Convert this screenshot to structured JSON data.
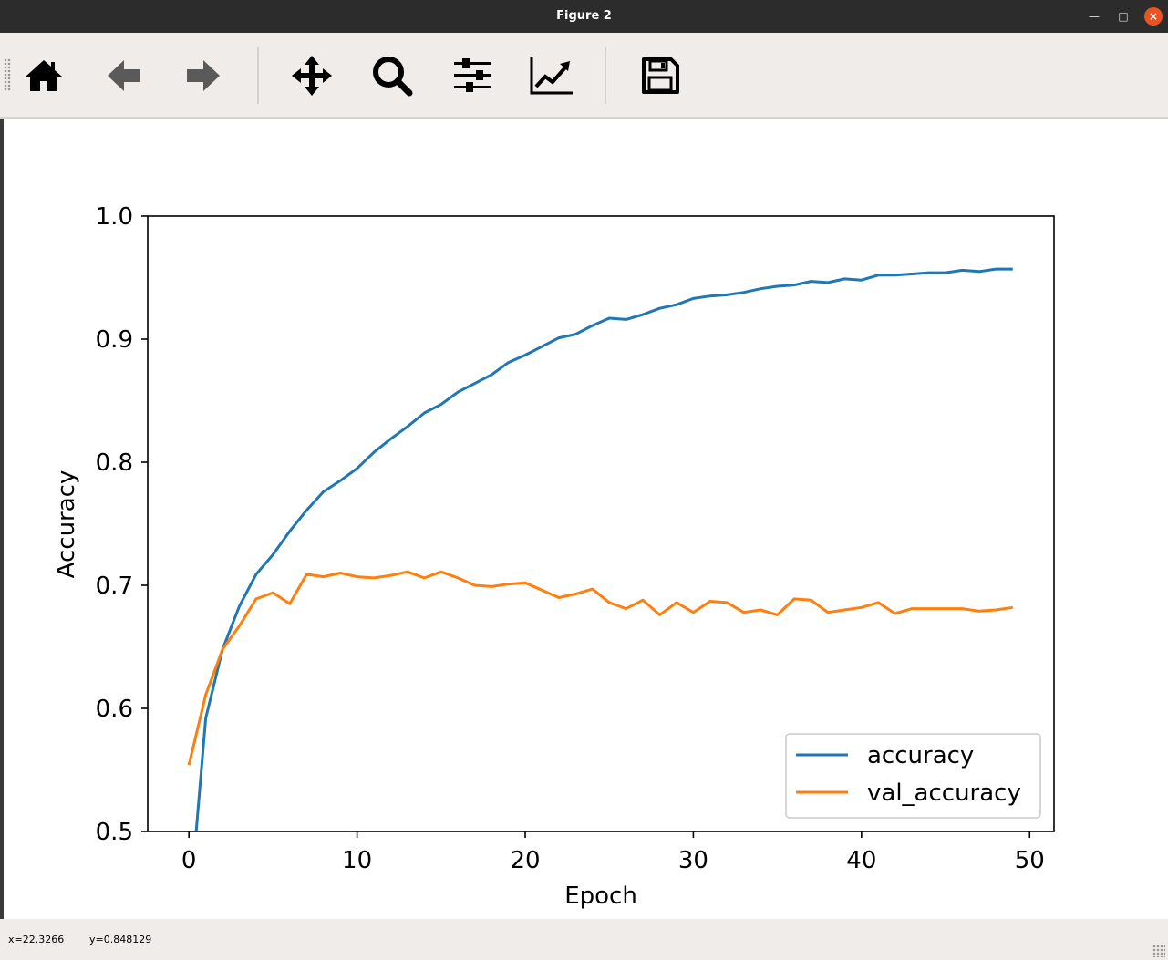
{
  "window": {
    "title": "Figure 2"
  },
  "toolbar": {
    "buttons": [
      {
        "name": "home",
        "icon": "home-icon"
      },
      {
        "name": "back",
        "icon": "arrow-left-icon"
      },
      {
        "name": "forward",
        "icon": "arrow-right-icon"
      },
      {
        "name": "pan",
        "icon": "move-icon"
      },
      {
        "name": "zoom",
        "icon": "magnifier-icon"
      },
      {
        "name": "subplots",
        "icon": "sliders-icon"
      },
      {
        "name": "edit-axes",
        "icon": "line-chart-icon"
      },
      {
        "name": "save",
        "icon": "floppy-disk-icon"
      }
    ]
  },
  "status": {
    "x_readout": "x=22.3266",
    "y_readout": "y=0.848129"
  },
  "chart_data": {
    "type": "line",
    "xlabel": "Epoch",
    "ylabel": "Accuracy",
    "xlim": [
      -2.45,
      51.45
    ],
    "ylim": [
      0.5,
      1.0
    ],
    "xticks": [
      "0",
      "10",
      "20",
      "30",
      "40",
      "50"
    ],
    "yticks": [
      "0.5",
      "0.6",
      "0.7",
      "0.8",
      "0.9",
      "1.0"
    ],
    "legend_position": "lower-right",
    "grid": false,
    "x": [
      0,
      1,
      2,
      3,
      4,
      5,
      6,
      7,
      8,
      9,
      10,
      11,
      12,
      13,
      14,
      15,
      16,
      17,
      18,
      19,
      20,
      21,
      22,
      23,
      24,
      25,
      26,
      27,
      28,
      29,
      30,
      31,
      32,
      33,
      34,
      35,
      36,
      37,
      38,
      39,
      40,
      41,
      42,
      43,
      44,
      45,
      46,
      47,
      48,
      49
    ],
    "series": [
      {
        "name": "accuracy",
        "color": "#1f77b4",
        "values": [
          0.43,
          0.592,
          0.648,
          0.683,
          0.709,
          0.725,
          0.744,
          0.761,
          0.776,
          0.785,
          0.795,
          0.808,
          0.819,
          0.829,
          0.84,
          0.847,
          0.857,
          0.864,
          0.871,
          0.881,
          0.887,
          0.894,
          0.901,
          0.904,
          0.911,
          0.917,
          0.916,
          0.92,
          0.925,
          0.928,
          0.933,
          0.935,
          0.936,
          0.938,
          0.941,
          0.943,
          0.944,
          0.947,
          0.946,
          0.949,
          0.948,
          0.952,
          0.952,
          0.953,
          0.954,
          0.954,
          0.956,
          0.955,
          0.957,
          0.957
        ]
      },
      {
        "name": "val_accuracy",
        "color": "#ff7f0e",
        "values": [
          0.554,
          0.611,
          0.648,
          0.667,
          0.689,
          0.694,
          0.685,
          0.709,
          0.707,
          0.71,
          0.707,
          0.706,
          0.708,
          0.711,
          0.706,
          0.711,
          0.706,
          0.7,
          0.699,
          0.701,
          0.702,
          0.696,
          0.69,
          0.693,
          0.697,
          0.686,
          0.681,
          0.688,
          0.676,
          0.686,
          0.678,
          0.687,
          0.686,
          0.678,
          0.68,
          0.676,
          0.689,
          0.688,
          0.678,
          0.68,
          0.682,
          0.686,
          0.677,
          0.681,
          0.681,
          0.681,
          0.681,
          0.679,
          0.68,
          0.682
        ]
      }
    ]
  }
}
